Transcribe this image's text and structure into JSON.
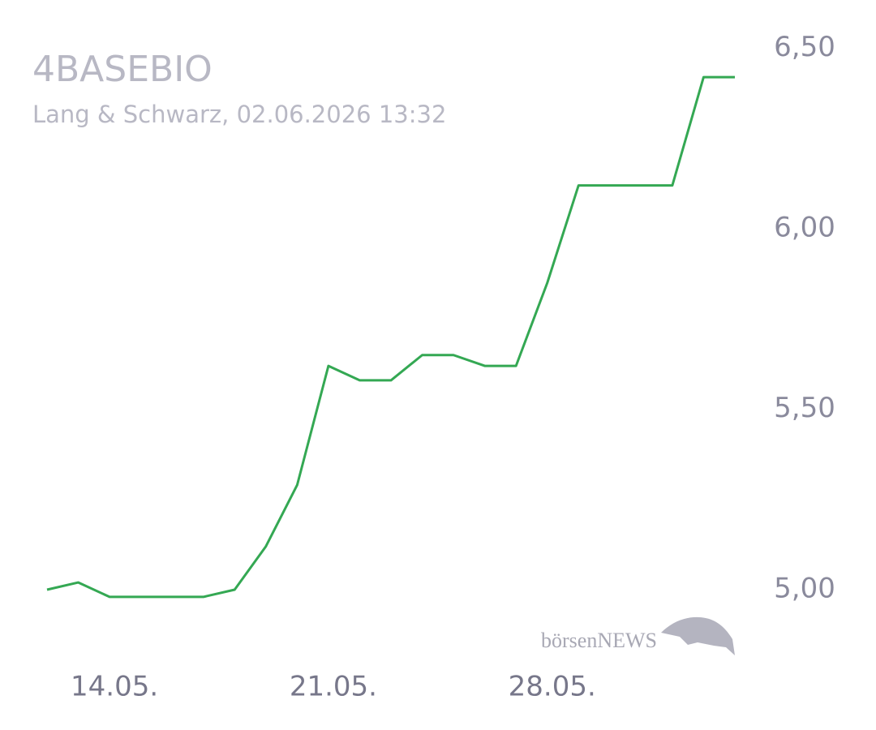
{
  "chart_data": {
    "type": "line",
    "title": "4BASEBIO",
    "subtitle": "Lang & Schwarz, 02.06.2026 13:32",
    "watermark": "börsenNEWS",
    "categories": [
      null,
      null,
      "14.05.",
      null,
      null,
      null,
      null,
      null,
      null,
      "21.05.",
      null,
      null,
      null,
      null,
      null,
      null,
      "28.05.",
      null,
      null,
      null,
      null,
      null,
      null
    ],
    "series": [
      {
        "name": "4BASEBIO",
        "color": "#34a853",
        "values": [
          5.0,
          5.02,
          4.98,
          4.98,
          4.98,
          4.98,
          5.0,
          5.12,
          5.29,
          5.62,
          5.58,
          5.58,
          5.65,
          5.65,
          5.62,
          5.62,
          5.85,
          6.12,
          6.12,
          6.12,
          6.12,
          6.42,
          6.42
        ]
      }
    ],
    "ylim": [
      4.8,
      6.6
    ],
    "yticks": [
      {
        "value": 5.0,
        "label": "5,00"
      },
      {
        "value": 5.5,
        "label": "5,50"
      },
      {
        "value": 6.0,
        "label": "6,00"
      },
      {
        "value": 6.5,
        "label": "6,50"
      }
    ],
    "grid": false
  }
}
